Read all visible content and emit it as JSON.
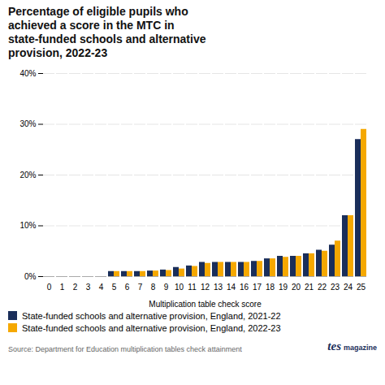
{
  "chart_data": {
    "type": "bar",
    "title": "Percentage of eligible pupils who\nachieved a score in the MTC in\nstate-funded schools and alternative\nprovision, 2022-23",
    "xlabel": "Multiplication table check score",
    "categories": [
      "0",
      "1",
      "2",
      "3",
      "4",
      "5",
      "6",
      "7",
      "8",
      "9",
      "10",
      "11",
      "12",
      "13",
      "14",
      "16",
      "17",
      "18",
      "19",
      "20",
      "21",
      "22",
      "23",
      "24",
      "25"
    ],
    "series": [
      {
        "name": "State-funded schools and alternative provision, England, 2021-22",
        "color": "#1a2e5a",
        "values": [
          0.0,
          0.0,
          0.0,
          0.0,
          0.0,
          1.0,
          1.0,
          1.0,
          1.1,
          1.3,
          1.8,
          2.1,
          2.8,
          2.8,
          2.8,
          2.8,
          3.0,
          3.5,
          4.0,
          4.0,
          4.5,
          5.2,
          6.2,
          12.0,
          27.0
        ]
      },
      {
        "name": "State-funded schools and alternative provision, England, 2022-23",
        "color": "#f5a800",
        "values": [
          0.0,
          0.0,
          0.0,
          0.0,
          0.0,
          1.0,
          1.0,
          1.0,
          1.1,
          1.2,
          1.5,
          2.0,
          2.6,
          2.8,
          2.8,
          2.8,
          3.0,
          3.5,
          3.8,
          4.0,
          4.5,
          5.0,
          7.0,
          12.0,
          29.0
        ]
      }
    ],
    "ylim": [
      0,
      40
    ],
    "yticks": [
      {
        "value": 0,
        "label": "0%"
      },
      {
        "value": 10,
        "label": "10%"
      },
      {
        "value": 20,
        "label": "20%"
      },
      {
        "value": 30,
        "label": "30%"
      },
      {
        "value": 40,
        "label": "40%"
      }
    ],
    "grid": true,
    "legend": "lower left",
    "annotations": [
      "Source: Department for Education multiplication tables check attainment",
      "tes",
      "magazine"
    ]
  }
}
